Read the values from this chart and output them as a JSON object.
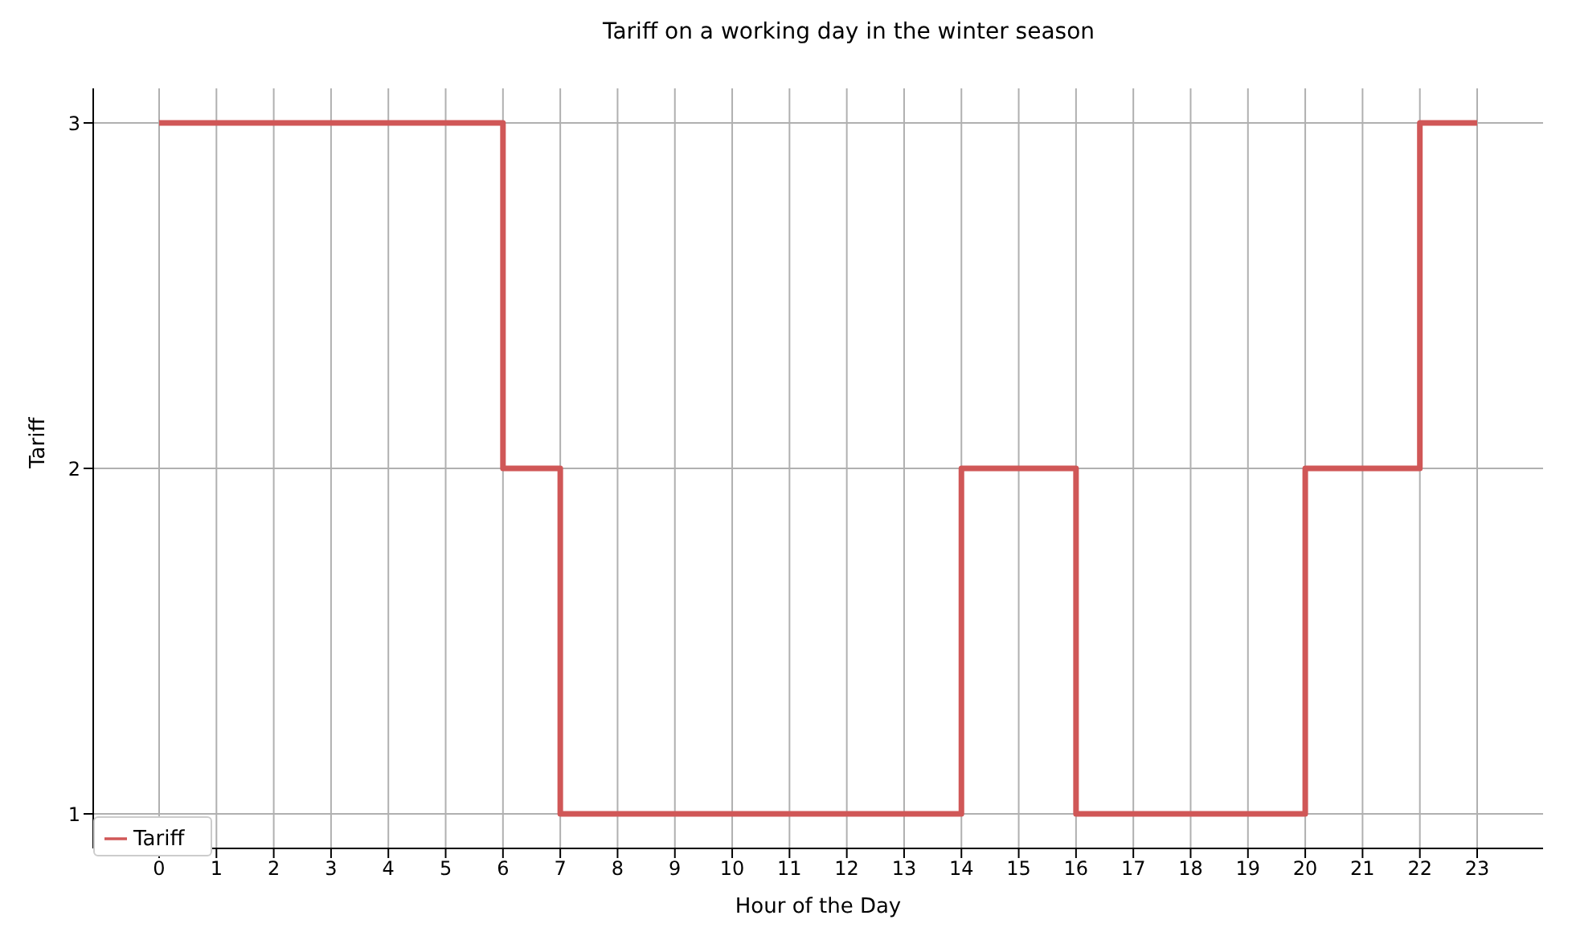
{
  "chart_data": {
    "type": "step",
    "title": "Tariff on a working day in the winter season",
    "xlabel": "Hour of the Day",
    "ylabel": "Tariff",
    "x": [
      0,
      1,
      2,
      3,
      4,
      5,
      6,
      7,
      8,
      9,
      10,
      11,
      12,
      13,
      14,
      15,
      16,
      17,
      18,
      19,
      20,
      21,
      22,
      23
    ],
    "series": [
      {
        "name": "Tariff",
        "color": "#d05757",
        "values": [
          3,
          3,
          3,
          3,
          3,
          3,
          2,
          1,
          1,
          1,
          1,
          1,
          1,
          1,
          2,
          2,
          1,
          1,
          1,
          1,
          2,
          2,
          3,
          3
        ]
      }
    ],
    "xlim": [
      -1.15,
      24.15
    ],
    "xticks": [
      0,
      1,
      2,
      3,
      4,
      5,
      6,
      7,
      8,
      9,
      10,
      11,
      12,
      13,
      14,
      15,
      16,
      17,
      18,
      19,
      20,
      21,
      22,
      23
    ],
    "ylim": [
      0.9,
      3.1
    ],
    "yticks": [
      1,
      2,
      3
    ],
    "grid": true,
    "legend": "bottom left",
    "line_style": "solid",
    "marker": "none"
  }
}
